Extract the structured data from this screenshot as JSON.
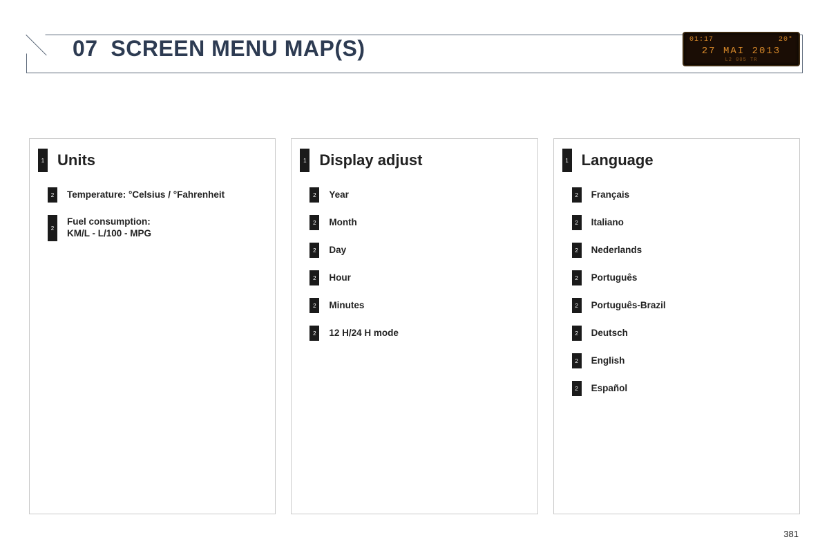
{
  "header": {
    "section_no": "07",
    "title": "SCREEN MENU MAP(S)"
  },
  "lcd": {
    "time": "01:17",
    "temp": "20°",
    "date": "27 MAI 2013",
    "bottom": "L2   005 TR"
  },
  "columns": [
    {
      "title": "Units",
      "marker": "1",
      "items": [
        {
          "marker": "2",
          "label": "Temperature: °Celsius / °Fahrenheit",
          "tall": false
        },
        {
          "marker": "2",
          "label": "Fuel consumption:\nKM/L - L/100 - MPG",
          "tall": true
        }
      ]
    },
    {
      "title": "Display adjust",
      "marker": "1",
      "items": [
        {
          "marker": "2",
          "label": "Year"
        },
        {
          "marker": "2",
          "label": "Month"
        },
        {
          "marker": "2",
          "label": "Day"
        },
        {
          "marker": "2",
          "label": "Hour"
        },
        {
          "marker": "2",
          "label": "Minutes"
        },
        {
          "marker": "2",
          "label": "12 H/24 H mode"
        }
      ]
    },
    {
      "title": "Language",
      "marker": "1",
      "items": [
        {
          "marker": "2",
          "label": "Français"
        },
        {
          "marker": "2",
          "label": "Italiano"
        },
        {
          "marker": "2",
          "label": "Nederlands"
        },
        {
          "marker": "2",
          "label": "Português"
        },
        {
          "marker": "2",
          "label": "Português-Brazil"
        },
        {
          "marker": "2",
          "label": "Deutsch"
        },
        {
          "marker": "2",
          "label": "English"
        },
        {
          "marker": "2",
          "label": "Español"
        }
      ]
    }
  ],
  "page_number": "381",
  "colors": {
    "border": "#5a6778",
    "col_border": "#c9c9c9",
    "text": "#2a2a2a",
    "title": "#2d3b52",
    "marker_bg": "#1a1a1a",
    "lcd_bg": "#1a0d05",
    "lcd_text": "#d98a2a"
  }
}
